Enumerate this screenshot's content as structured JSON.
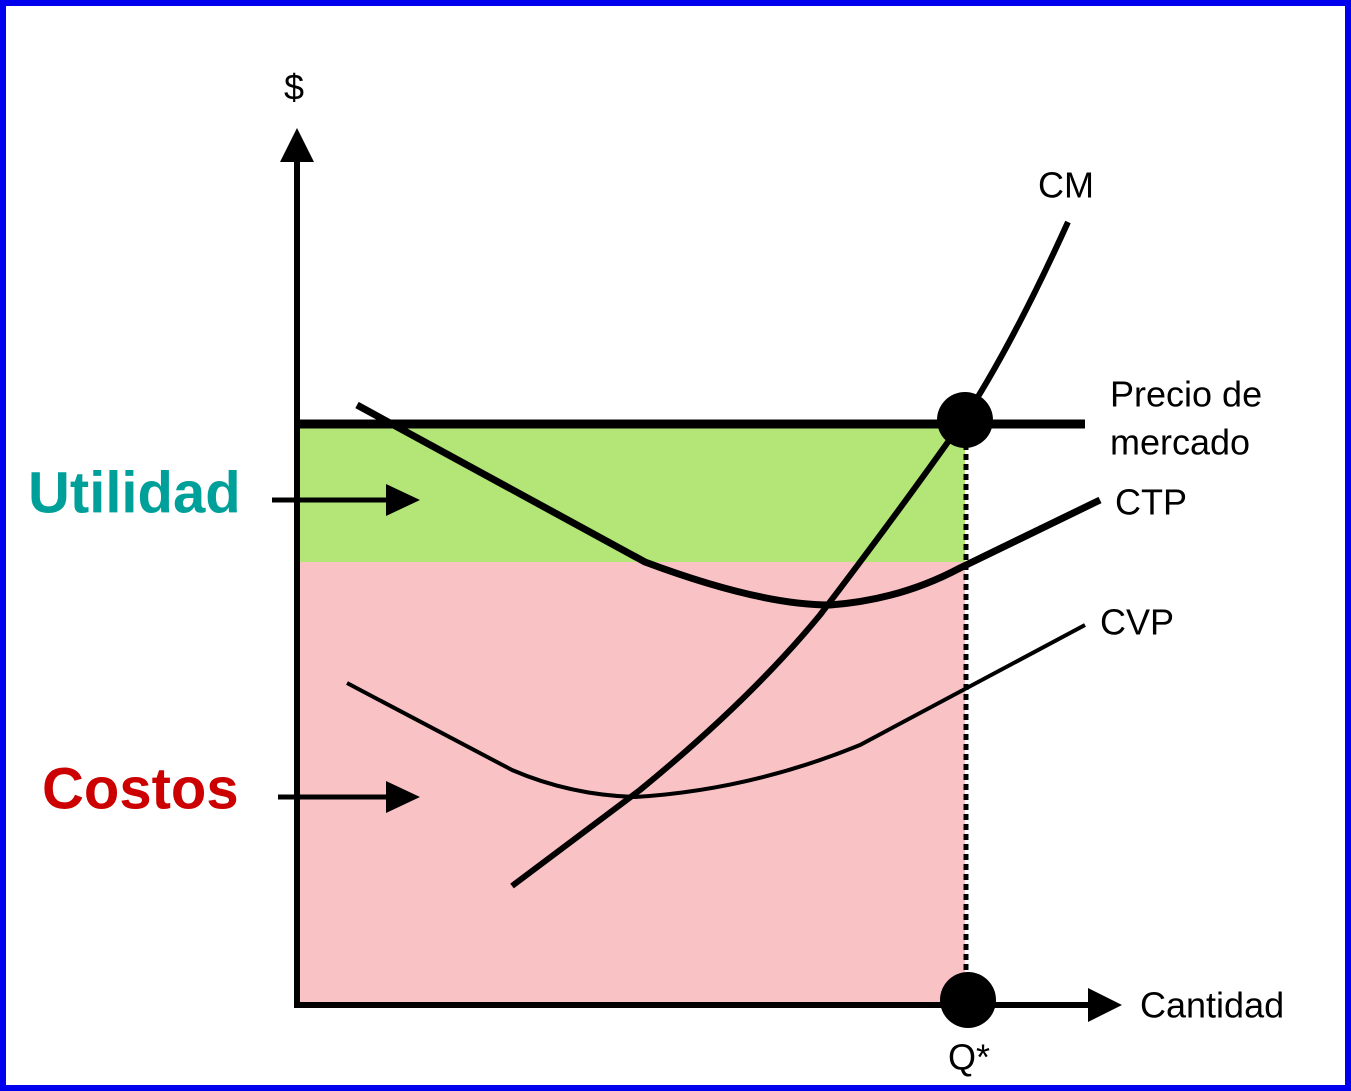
{
  "axes": {
    "y_label": "$",
    "x_label": "Cantidad"
  },
  "curves": {
    "cm": "CM",
    "ctp": "CTP",
    "cvp": "CVP"
  },
  "price": {
    "line1": "Precio de",
    "line2": "mercado"
  },
  "quantity": "Q*",
  "regions": {
    "profit": "Utilidad",
    "costs": "Costos"
  }
}
